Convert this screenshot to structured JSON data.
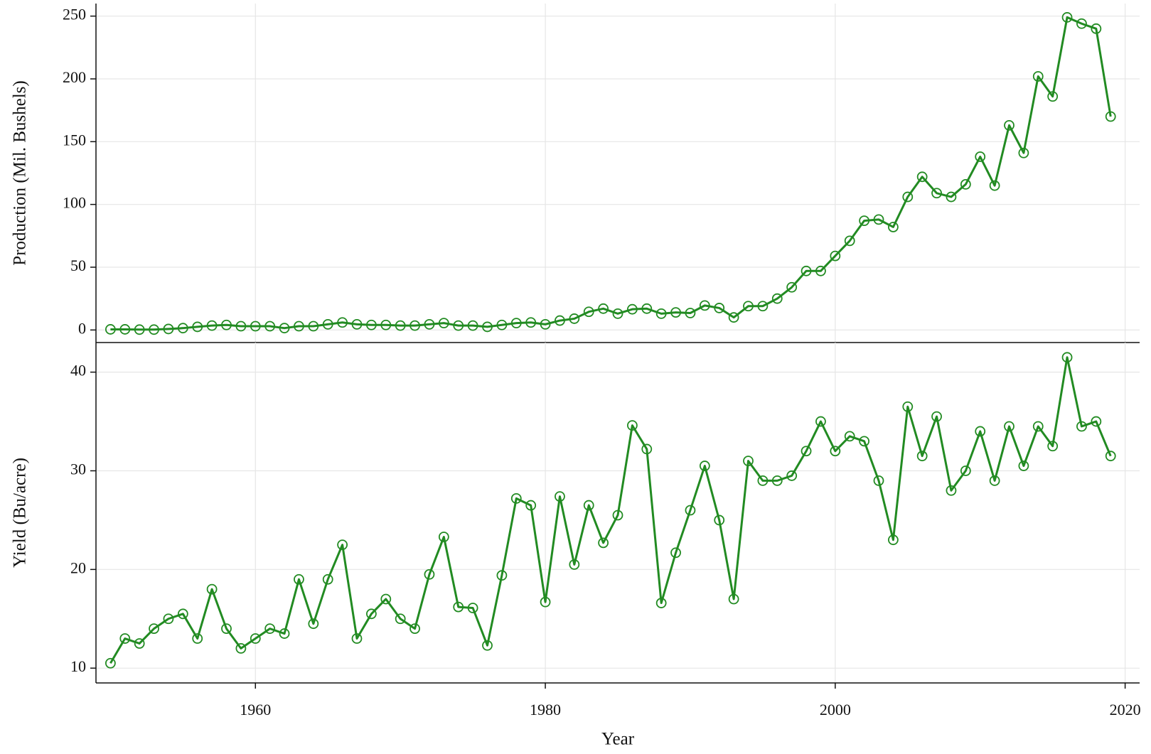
{
  "chart_data": [
    {
      "type": "line",
      "ylabel": "Production (Mil. Bushels)",
      "color": "#228b22",
      "x": [
        1950,
        1951,
        1952,
        1953,
        1954,
        1955,
        1956,
        1957,
        1958,
        1959,
        1960,
        1961,
        1962,
        1963,
        1964,
        1965,
        1966,
        1967,
        1968,
        1969,
        1970,
        1971,
        1972,
        1973,
        1974,
        1975,
        1976,
        1977,
        1978,
        1979,
        1980,
        1981,
        1982,
        1983,
        1984,
        1985,
        1986,
        1987,
        1988,
        1989,
        1990,
        1991,
        1992,
        1993,
        1994,
        1995,
        1996,
        1997,
        1998,
        1999,
        2000,
        2001,
        2002,
        2003,
        2004,
        2005,
        2006,
        2007,
        2008,
        2009,
        2010,
        2011,
        2012,
        2013,
        2014,
        2015,
        2016,
        2017,
        2018,
        2019
      ],
      "values": [
        0.5,
        0.5,
        0.3,
        0.3,
        0.8,
        1.5,
        2.5,
        3.5,
        4,
        3,
        3,
        3,
        1.5,
        3,
        3,
        4.5,
        6,
        4.5,
        4,
        4,
        3.5,
        3.5,
        4.5,
        5.5,
        3.5,
        3.5,
        2.5,
        4,
        5.5,
        6,
        4.5,
        7.5,
        9,
        14.5,
        17,
        13,
        16.5,
        17,
        13,
        14,
        13.5,
        19.5,
        17.5,
        10,
        19,
        19,
        25,
        34,
        47,
        47,
        59,
        71,
        87,
        88,
        82,
        106,
        122,
        109,
        106,
        116,
        138,
        115,
        163,
        141,
        202,
        186,
        249,
        244,
        240,
        170
      ],
      "xlim": [
        1949,
        2021
      ],
      "xticks": [
        1960,
        1980,
        2000,
        2020
      ],
      "show_xtick_labels": false,
      "ylim": [
        -10,
        260
      ],
      "yticks": [
        0,
        50,
        100,
        150,
        200,
        250
      ],
      "grid": true
    },
    {
      "type": "line",
      "ylabel": "Yield (Bu/acre)",
      "xlabel": "Year",
      "color": "#228b22",
      "x": [
        1950,
        1951,
        1952,
        1953,
        1954,
        1955,
        1956,
        1957,
        1958,
        1959,
        1960,
        1961,
        1962,
        1963,
        1964,
        1965,
        1966,
        1967,
        1968,
        1969,
        1970,
        1971,
        1972,
        1973,
        1974,
        1975,
        1976,
        1977,
        1978,
        1979,
        1980,
        1981,
        1982,
        1983,
        1984,
        1985,
        1986,
        1987,
        1988,
        1989,
        1990,
        1991,
        1992,
        1993,
        1994,
        1995,
        1996,
        1997,
        1998,
        1999,
        2000,
        2001,
        2002,
        2003,
        2004,
        2005,
        2006,
        2007,
        2008,
        2009,
        2010,
        2011,
        2012,
        2013,
        2014,
        2015,
        2016,
        2017,
        2018,
        2019
      ],
      "values": [
        10.5,
        13,
        12.5,
        14,
        15,
        15.5,
        13,
        18,
        14,
        12,
        13,
        14,
        13.5,
        19,
        14.5,
        19,
        22.5,
        13,
        15.5,
        17,
        15,
        14,
        19.5,
        23.3,
        16.2,
        16.1,
        12.3,
        19.4,
        27.2,
        26.5,
        16.7,
        27.4,
        20.5,
        26.5,
        22.7,
        25.5,
        34.6,
        32.2,
        16.6,
        21.7,
        26,
        30.5,
        25,
        17,
        31,
        29,
        29,
        29.5,
        32,
        35,
        32,
        33.5,
        33,
        29,
        23,
        36.5,
        31.5,
        35.5,
        28,
        30,
        34,
        29,
        34.5,
        30.5,
        34.5,
        32.5,
        41.5,
        34.5,
        35,
        31.5
      ],
      "xlim": [
        1949,
        2021
      ],
      "xticks": [
        1960,
        1980,
        2000,
        2020
      ],
      "show_xtick_labels": true,
      "ylim": [
        8.5,
        43
      ],
      "yticks": [
        10,
        20,
        30,
        40
      ],
      "grid": true
    }
  ]
}
